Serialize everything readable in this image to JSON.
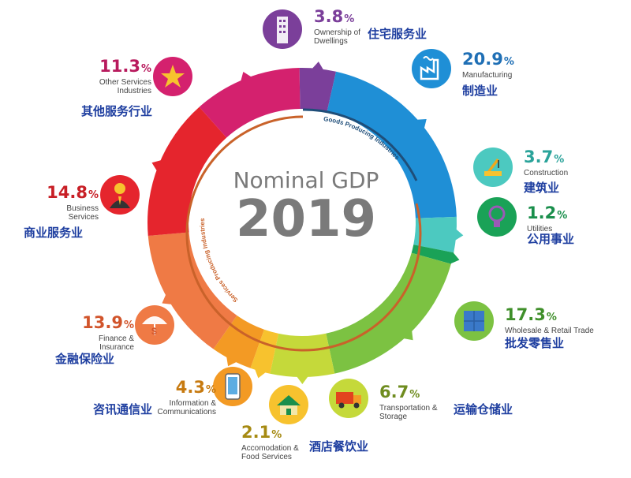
{
  "chart_data": {
    "type": "pie",
    "title": "Nominal GDP",
    "year": "2019",
    "unit": "%",
    "inner_labels": [
      "Goods Producing Industries",
      "Services Producing Industries"
    ],
    "slices": [
      {
        "pct": "3.8",
        "en": "Ownership of\nDwellings",
        "zh": "住宅服务业",
        "color": "#7b3f9a",
        "label_color": "#7b3f9a",
        "icon": "building-icon"
      },
      {
        "pct": "20.9",
        "en": "Manufacturing",
        "zh": "制造业",
        "color": "#1f8fd6",
        "label_color": "#1f6fb5",
        "icon": "factory-icon"
      },
      {
        "pct": "3.7",
        "en": "Construction",
        "zh": "建筑业",
        "color": "#4cc9c0",
        "label_color": "#2aa39a",
        "icon": "crane-icon"
      },
      {
        "pct": "1.2",
        "en": "Utilities",
        "zh": "公用事业",
        "color": "#1aa257",
        "label_color": "#1a8f4c",
        "icon": "lightbulb-icon"
      },
      {
        "pct": "17.3",
        "en": "Wholesale & Retail Trade",
        "zh": "批发零售业",
        "color": "#7cc242",
        "label_color": "#3f8f2a",
        "icon": "boxes-icon"
      },
      {
        "pct": "6.7",
        "en": "Transportation &\nStorage",
        "zh": "运输仓储业",
        "color": "#c5d93a",
        "label_color": "#6f8c1f",
        "icon": "truck-icon"
      },
      {
        "pct": "2.1",
        "en": "Accomodation &\nFood Services",
        "zh": "酒店餐饮业",
        "color": "#f7c22e",
        "label_color": "#a68a12",
        "icon": "house-icon"
      },
      {
        "pct": "4.3",
        "en": "Information &\nCommunications",
        "zh": "咨讯通信业",
        "color": "#f39a24",
        "label_color": "#c77a10",
        "icon": "phone-icon"
      },
      {
        "pct": "13.9",
        "en": "Finance &\nInsurance",
        "zh": "金融保险业",
        "color": "#ef7a45",
        "label_color": "#d1542b",
        "icon": "umbrella-icon"
      },
      {
        "pct": "14.8",
        "en": "Business\nServices",
        "zh": "商业服务业",
        "color": "#e5252d",
        "label_color": "#c81f26",
        "icon": "businessman-icon"
      },
      {
        "pct": "11.3",
        "en": "Other Services\nIndustries",
        "zh": "其他服务行业",
        "color": "#d4216e",
        "label_color": "#b81a5d",
        "icon": "star-icon"
      }
    ]
  }
}
